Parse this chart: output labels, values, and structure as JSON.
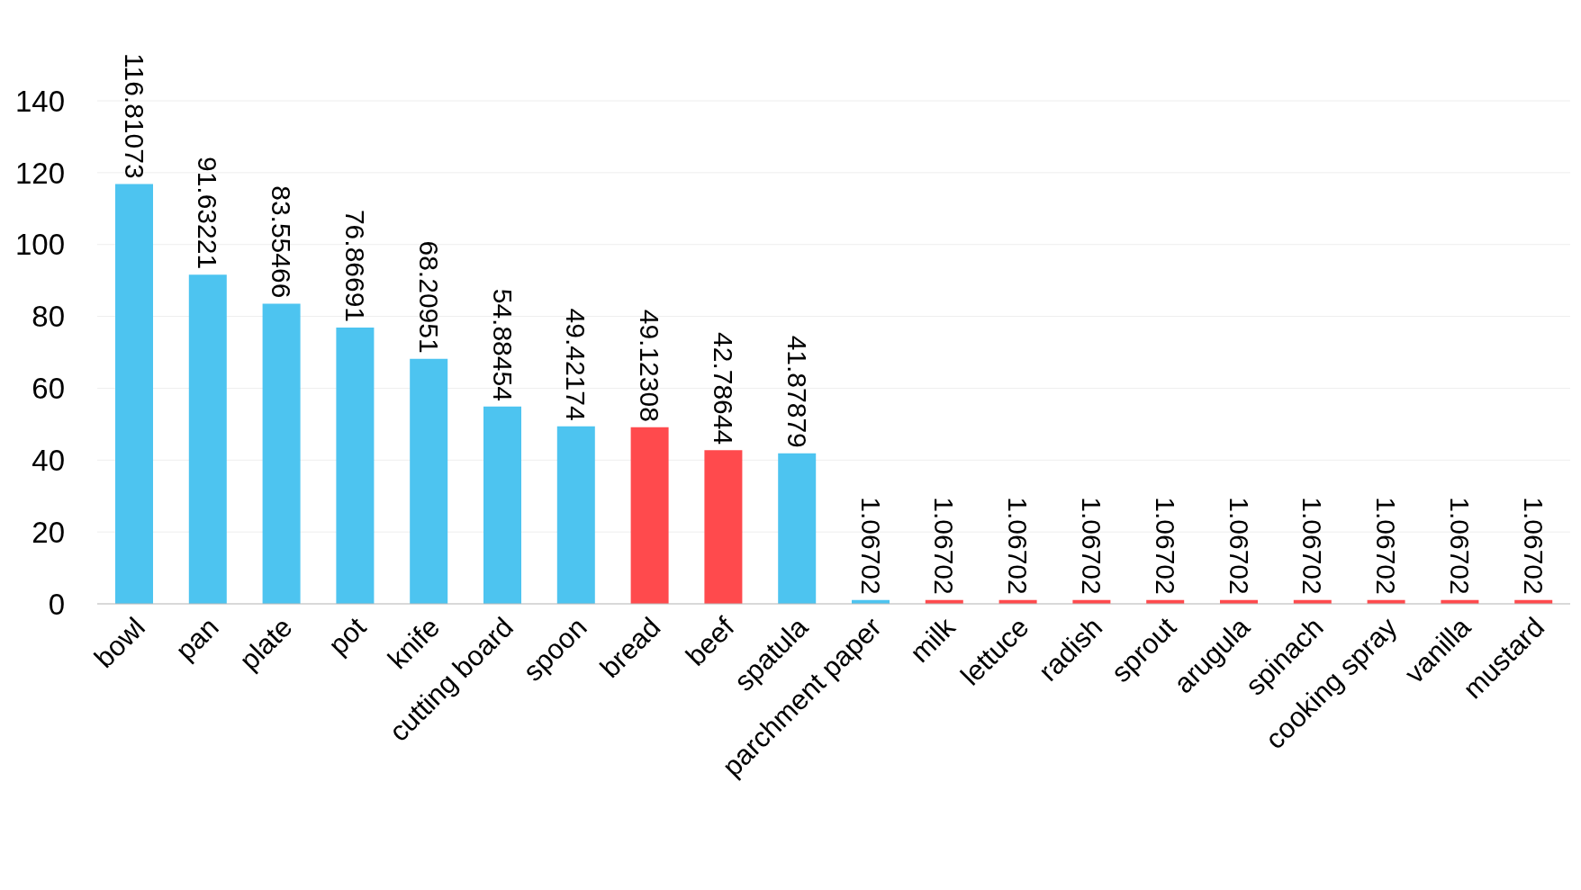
{
  "chart_data": {
    "type": "bar",
    "categories": [
      "bowl",
      "pan",
      "plate",
      "pot",
      "knife",
      "cutting board",
      "spoon",
      "bread",
      "beef",
      "spatula",
      "parchment paper",
      "milk",
      "lettuce",
      "radish",
      "sprout",
      "arugula",
      "spinach",
      "cooking spray",
      "vanilla",
      "mustard"
    ],
    "values": [
      116.81073,
      91.63221,
      83.55466,
      76.86691,
      68.20951,
      54.88454,
      49.42174,
      49.12308,
      42.78644,
      41.87879,
      1.06702,
      1.06702,
      1.06702,
      1.06702,
      1.06702,
      1.06702,
      1.06702,
      1.06702,
      1.06702,
      1.06702
    ],
    "colors": [
      "#4dc4f0",
      "#4dc4f0",
      "#4dc4f0",
      "#4dc4f0",
      "#4dc4f0",
      "#4dc4f0",
      "#4dc4f0",
      "#ff4a4d",
      "#ff4a4d",
      "#4dc4f0",
      "#4dc4f0",
      "#ff4a4d",
      "#ff4a4d",
      "#ff4a4d",
      "#ff4a4d",
      "#ff4a4d",
      "#ff4a4d",
      "#ff4a4d",
      "#ff4a4d",
      "#ff4a4d"
    ],
    "ylim": [
      0,
      140
    ],
    "yticks": [
      0,
      20,
      40,
      60,
      80,
      100,
      120,
      140
    ],
    "grid": "y",
    "data_labels": true
  }
}
